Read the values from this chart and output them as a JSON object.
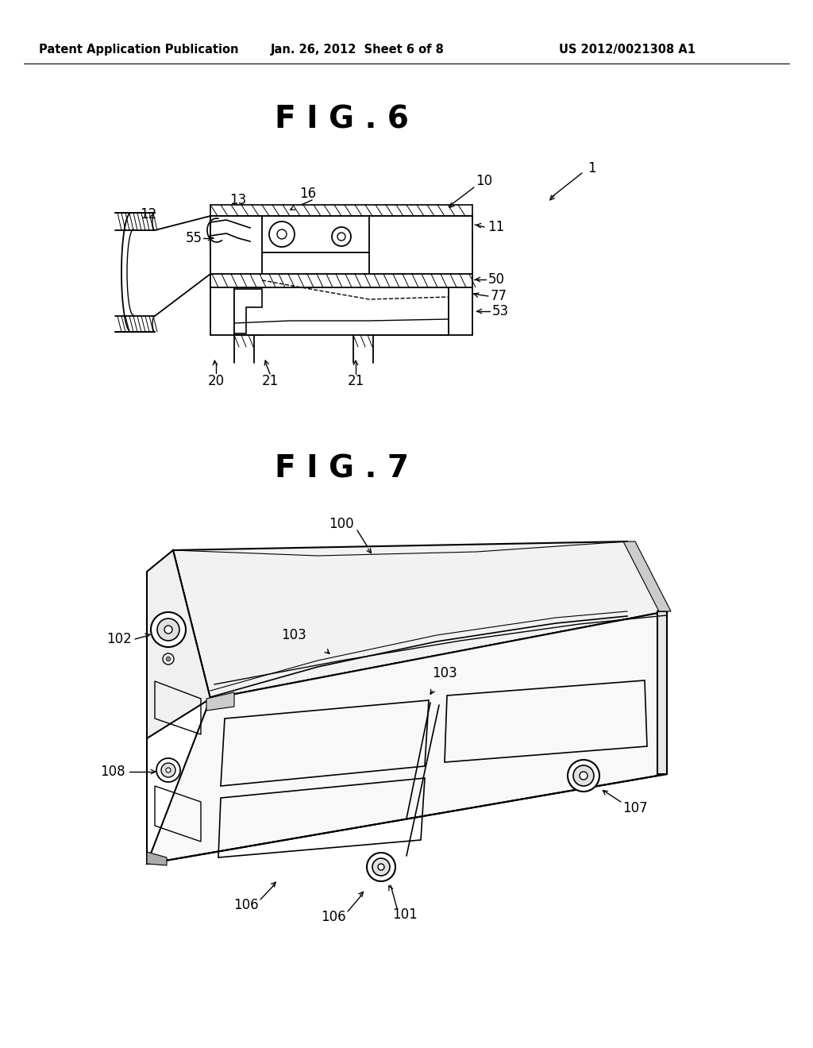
{
  "bg_color": "#ffffff",
  "fig_width": 10.24,
  "fig_height": 13.2,
  "header_left": "Patent Application Publication",
  "header_mid": "Jan. 26, 2012  Sheet 6 of 8",
  "header_right": "US 2012/0021308 A1",
  "line_color": "#000000",
  "text_color": "#000000"
}
